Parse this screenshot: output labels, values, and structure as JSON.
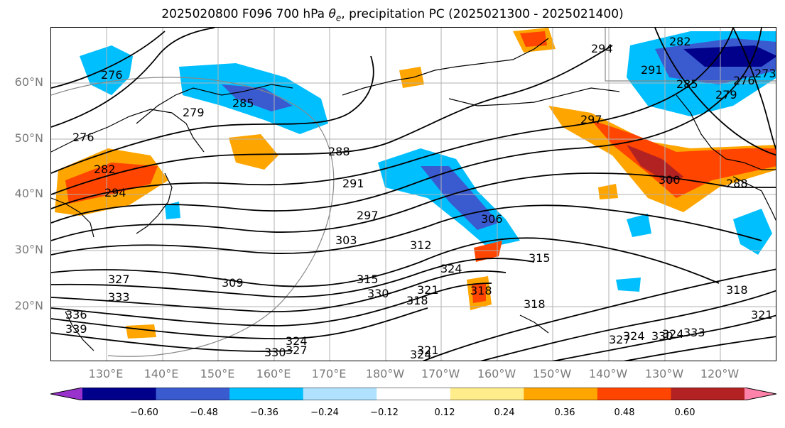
{
  "title_prefix": "2025020800 F096 700 hPa ",
  "title_symbol": "θ",
  "title_subscript": "e",
  "title_suffix": ", precipitation PC (2025021300 - 2025021400)",
  "lat_labels": [
    "60°N",
    "50°N",
    "40°N",
    "30°N",
    "20°N"
  ],
  "lon_labels": [
    "130°E",
    "140°E",
    "150°E",
    "160°E",
    "170°E",
    "180°W",
    "170°W",
    "160°W",
    "150°W",
    "140°W",
    "130°W",
    "120°W"
  ],
  "colorbar": {
    "colors": [
      "#9932cc",
      "#00008b",
      "#3a5bd0",
      "#00bfff",
      "#b0e2ff",
      "#ffffff",
      "#ffec8b",
      "#ffa500",
      "#ff4500",
      "#b22222",
      "#ff82ab"
    ],
    "tick_labels": [
      "−0.60",
      "−0.48",
      "−0.36",
      "−0.24",
      "−0.12",
      "0.12",
      "0.24",
      "0.36",
      "0.48",
      "0.60"
    ]
  },
  "contour_labels": [
    "276",
    "279",
    "276",
    "285",
    "282",
    "294",
    "288",
    "291",
    "297",
    "303",
    "306",
    "309",
    "312",
    "315",
    "318",
    "321",
    "324",
    "330",
    "333",
    "327",
    "294",
    "297",
    "300",
    "288",
    "291",
    "279",
    "276",
    "273",
    "285",
    "282",
    "315",
    "318",
    "318",
    "321",
    "324",
    "327",
    "330",
    "333",
    "324",
    "327",
    "330",
    "336",
    "339",
    "318",
    "321",
    "324",
    "324"
  ]
}
